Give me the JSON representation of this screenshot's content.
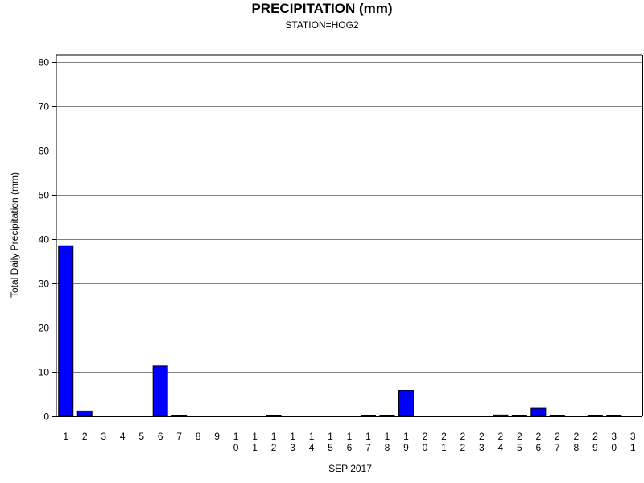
{
  "chart_data": {
    "type": "bar",
    "title": "PRECIPITATION (mm)",
    "subtitle": "STATION=HOG2",
    "xlabel": "SEP 2017",
    "ylabel": "Total Daily Precipitation (mm)",
    "ylim": [
      0,
      80
    ],
    "yticks": [
      0,
      10,
      20,
      30,
      40,
      50,
      60,
      70,
      80
    ],
    "grid": true,
    "bar_color": "#0000ff",
    "categories": [
      "1",
      "2",
      "3",
      "4",
      "5",
      "6",
      "7",
      "8",
      "9",
      "10",
      "11",
      "12",
      "13",
      "14",
      "15",
      "16",
      "17",
      "18",
      "19",
      "20",
      "21",
      "22",
      "23",
      "24",
      "25",
      "26",
      "27",
      "28",
      "29",
      "30",
      "31"
    ],
    "values": [
      38.5,
      1.2,
      0,
      0,
      0,
      11.3,
      0.1,
      0,
      0,
      0,
      0,
      0.1,
      0,
      0,
      0,
      0,
      0.1,
      0.1,
      5.8,
      0,
      0,
      0,
      0,
      0.3,
      0.1,
      1.8,
      0.1,
      0,
      0.1,
      0.1,
      0
    ]
  }
}
